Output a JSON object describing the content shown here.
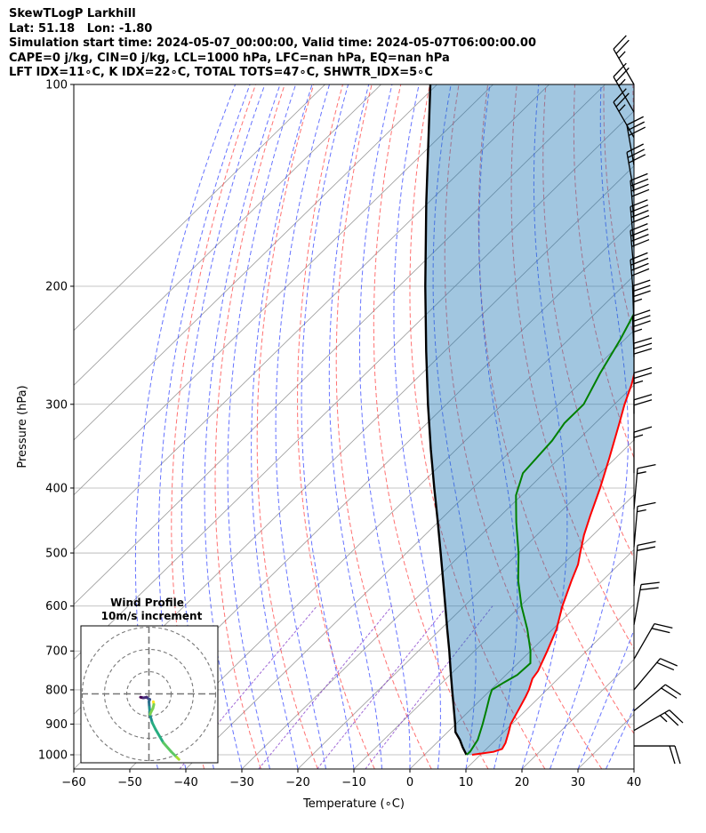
{
  "header": {
    "title": "SkewTLogP Larkhill",
    "latlon": "Lat: 51.18   Lon: -1.80",
    "times": "Simulation start time: 2024-05-07_00:00:00, Valid time: 2024-05-07T06:00:00.00",
    "params": "CAPE=0 j/kg, CIN=0 j/kg, LCL=1000 hPa, LFC=nan hPa, EQ=nan hPa",
    "indices": "LFT IDX=11∘C, K IDX=22∘C, TOTAL TOTS=47∘C, SHWTR_IDX=5∘C"
  },
  "chart_data": {
    "type": "line",
    "title": "SkewTLogP Larkhill",
    "xlabel": "Temperature (∘C)",
    "ylabel": "Pressure (hPa)",
    "xlim": [
      -60,
      40
    ],
    "ylim": [
      1050,
      100
    ],
    "y_scale": "log",
    "grid": true,
    "x_ticks": [
      -60,
      -50,
      -40,
      -30,
      -20,
      -10,
      0,
      10,
      20,
      30,
      40
    ],
    "x_tick_labels": [
      "−60",
      "−50",
      "−40",
      "−30",
      "−20",
      "−10",
      "0",
      "10",
      "20",
      "30",
      "40"
    ],
    "y_ticks": [
      1000,
      900,
      800,
      700,
      600,
      500,
      400,
      300,
      200,
      100
    ],
    "y_tick_labels": [
      "1000",
      "900",
      "800",
      "700",
      "600",
      "500",
      "400",
      "300",
      "200",
      "100"
    ],
    "colors": {
      "temperature": "#ff0000",
      "dewpoint": "#008000",
      "parcel": "#000000",
      "cin_fill": "#1f77b4",
      "dry_adiabat": "#ff4d4d",
      "moist_adiabat": "#3344ff",
      "mixing_ratio": "#8844cc",
      "isotherm": "#999999"
    },
    "series": [
      {
        "key": "temperature",
        "points": [
          [
            1000,
            8.5
          ],
          [
            990,
            11.8
          ],
          [
            980,
            12.8
          ],
          [
            960,
            12.3
          ],
          [
            925,
            10.9
          ],
          [
            900,
            9.8
          ],
          [
            850,
            8.4
          ],
          [
            820,
            7.5
          ],
          [
            800,
            6.8
          ],
          [
            770,
            5.4
          ],
          [
            750,
            5.0
          ],
          [
            700,
            3.0
          ],
          [
            650,
            0.7
          ],
          [
            600,
            -2.5
          ],
          [
            550,
            -5.5
          ],
          [
            520,
            -7.3
          ],
          [
            500,
            -9.0
          ],
          [
            470,
            -11.6
          ],
          [
            440,
            -14.0
          ],
          [
            400,
            -17.3
          ],
          [
            360,
            -21.2
          ],
          [
            320,
            -25.7
          ],
          [
            300,
            -28.2
          ],
          [
            280,
            -30.6
          ],
          [
            265,
            -32.8
          ],
          [
            250,
            -35.5
          ],
          [
            240,
            -37.0
          ],
          [
            230,
            -38.5
          ],
          [
            215,
            -41.0
          ],
          [
            200,
            -43.0
          ],
          [
            185,
            -46.0
          ],
          [
            170,
            -49.6
          ],
          [
            155,
            -53.0
          ],
          [
            140,
            -56.5
          ],
          [
            132,
            -59.0
          ],
          [
            122,
            -60.0
          ],
          [
            110,
            -61.7
          ],
          [
            100,
            -63.0
          ]
        ]
      },
      {
        "key": "dewpoint",
        "points": [
          [
            1000,
            7.5
          ],
          [
            990,
            7.6
          ],
          [
            950,
            6.8
          ],
          [
            900,
            4.8
          ],
          [
            860,
            3.0
          ],
          [
            820,
            1.1
          ],
          [
            800,
            0.2
          ],
          [
            780,
            1.0
          ],
          [
            760,
            2.0
          ],
          [
            730,
            2.2
          ],
          [
            700,
            0.0
          ],
          [
            650,
            -4.5
          ],
          [
            600,
            -9.8
          ],
          [
            550,
            -15.0
          ],
          [
            500,
            -20.0
          ],
          [
            450,
            -26.0
          ],
          [
            410,
            -31.0
          ],
          [
            380,
            -33.8
          ],
          [
            340,
            -34.5
          ],
          [
            320,
            -35.5
          ],
          [
            300,
            -35.5
          ],
          [
            270,
            -38.2
          ],
          [
            240,
            -40.8
          ],
          [
            215,
            -43.6
          ],
          [
            200,
            -46.6
          ],
          [
            185,
            -50.0
          ],
          [
            170,
            -54.4
          ],
          [
            160,
            -57.0
          ],
          [
            148,
            -59.0
          ],
          [
            125,
            -62.8
          ],
          [
            100,
            -71.0
          ]
        ]
      },
      {
        "key": "parcel",
        "points": [
          [
            1000,
            7.5
          ],
          [
            975,
            5.5
          ],
          [
            950,
            3.6
          ],
          [
            925,
            1.4
          ],
          [
            900,
            -0.1
          ],
          [
            850,
            -3.4
          ],
          [
            800,
            -6.9
          ],
          [
            750,
            -10.6
          ],
          [
            700,
            -14.5
          ],
          [
            650,
            -18.8
          ],
          [
            600,
            -23.4
          ],
          [
            550,
            -28.4
          ],
          [
            500,
            -33.9
          ],
          [
            450,
            -40.0
          ],
          [
            400,
            -46.9
          ],
          [
            350,
            -54.6
          ],
          [
            300,
            -63.3
          ],
          [
            250,
            -73.3
          ],
          [
            200,
            -85.3
          ],
          [
            150,
            -100.4
          ],
          [
            100,
            -121.2
          ]
        ]
      }
    ],
    "wind_barbs": [
      {
        "pressure": 100,
        "speed_kt": 25,
        "dir_deg": 330
      },
      {
        "pressure": 110,
        "speed_kt": 25,
        "dir_deg": 330
      },
      {
        "pressure": 120,
        "speed_kt": 25,
        "dir_deg": 330
      },
      {
        "pressure": 132,
        "speed_kt": 30,
        "dir_deg": 350
      },
      {
        "pressure": 145,
        "speed_kt": 30,
        "dir_deg": 350
      },
      {
        "pressure": 160,
        "speed_kt": 40,
        "dir_deg": 355
      },
      {
        "pressure": 175,
        "speed_kt": 40,
        "dir_deg": 355
      },
      {
        "pressure": 190,
        "speed_kt": 40,
        "dir_deg": 355
      },
      {
        "pressure": 210,
        "speed_kt": 40,
        "dir_deg": 355
      },
      {
        "pressure": 230,
        "speed_kt": 35,
        "dir_deg": 358
      },
      {
        "pressure": 255,
        "speed_kt": 35,
        "dir_deg": 358
      },
      {
        "pressure": 280,
        "speed_kt": 30,
        "dir_deg": 0
      },
      {
        "pressure": 310,
        "speed_kt": 25,
        "dir_deg": 0
      },
      {
        "pressure": 340,
        "speed_kt": 20,
        "dir_deg": 0
      },
      {
        "pressure": 380,
        "speed_kt": 15,
        "dir_deg": 0
      },
      {
        "pressure": 430,
        "speed_kt": 15,
        "dir_deg": 5
      },
      {
        "pressure": 490,
        "speed_kt": 15,
        "dir_deg": 5
      },
      {
        "pressure": 560,
        "speed_kt": 20,
        "dir_deg": 5
      },
      {
        "pressure": 640,
        "speed_kt": 20,
        "dir_deg": 10
      },
      {
        "pressure": 720,
        "speed_kt": 20,
        "dir_deg": 30
      },
      {
        "pressure": 800,
        "speed_kt": 20,
        "dir_deg": 40
      },
      {
        "pressure": 860,
        "speed_kt": 20,
        "dir_deg": 50
      },
      {
        "pressure": 920,
        "speed_kt": 25,
        "dir_deg": 60
      },
      {
        "pressure": 970,
        "speed_kt": 20,
        "dir_deg": 90
      }
    ],
    "inset": {
      "title": "Wind Profile",
      "subtitle": "10m/s increment",
      "ring_step_ms": 10,
      "hodograph": [
        [
          -3.8,
          -1.5
        ],
        [
          -2.5,
          -1.8
        ],
        [
          -1.0,
          -1.5
        ],
        [
          -0.2,
          -2.2
        ],
        [
          0.4,
          -2.5
        ],
        [
          0.0,
          -3.5
        ],
        [
          0.2,
          -6.0
        ],
        [
          0.5,
          -9.5
        ],
        [
          1.5,
          -13.0
        ],
        [
          3.0,
          -16.0
        ],
        [
          6.5,
          -22.0
        ],
        [
          10.0,
          -26.0
        ],
        [
          12.5,
          -28.5
        ],
        [
          13.5,
          -29.5
        ]
      ],
      "hodograph_end": [
        [
          2.0,
          -3.5
        ],
        [
          2.2,
          -4.8
        ],
        [
          1.8,
          -6.5
        ],
        [
          1.0,
          -8.0
        ],
        [
          0.5,
          -9.2
        ]
      ]
    }
  }
}
